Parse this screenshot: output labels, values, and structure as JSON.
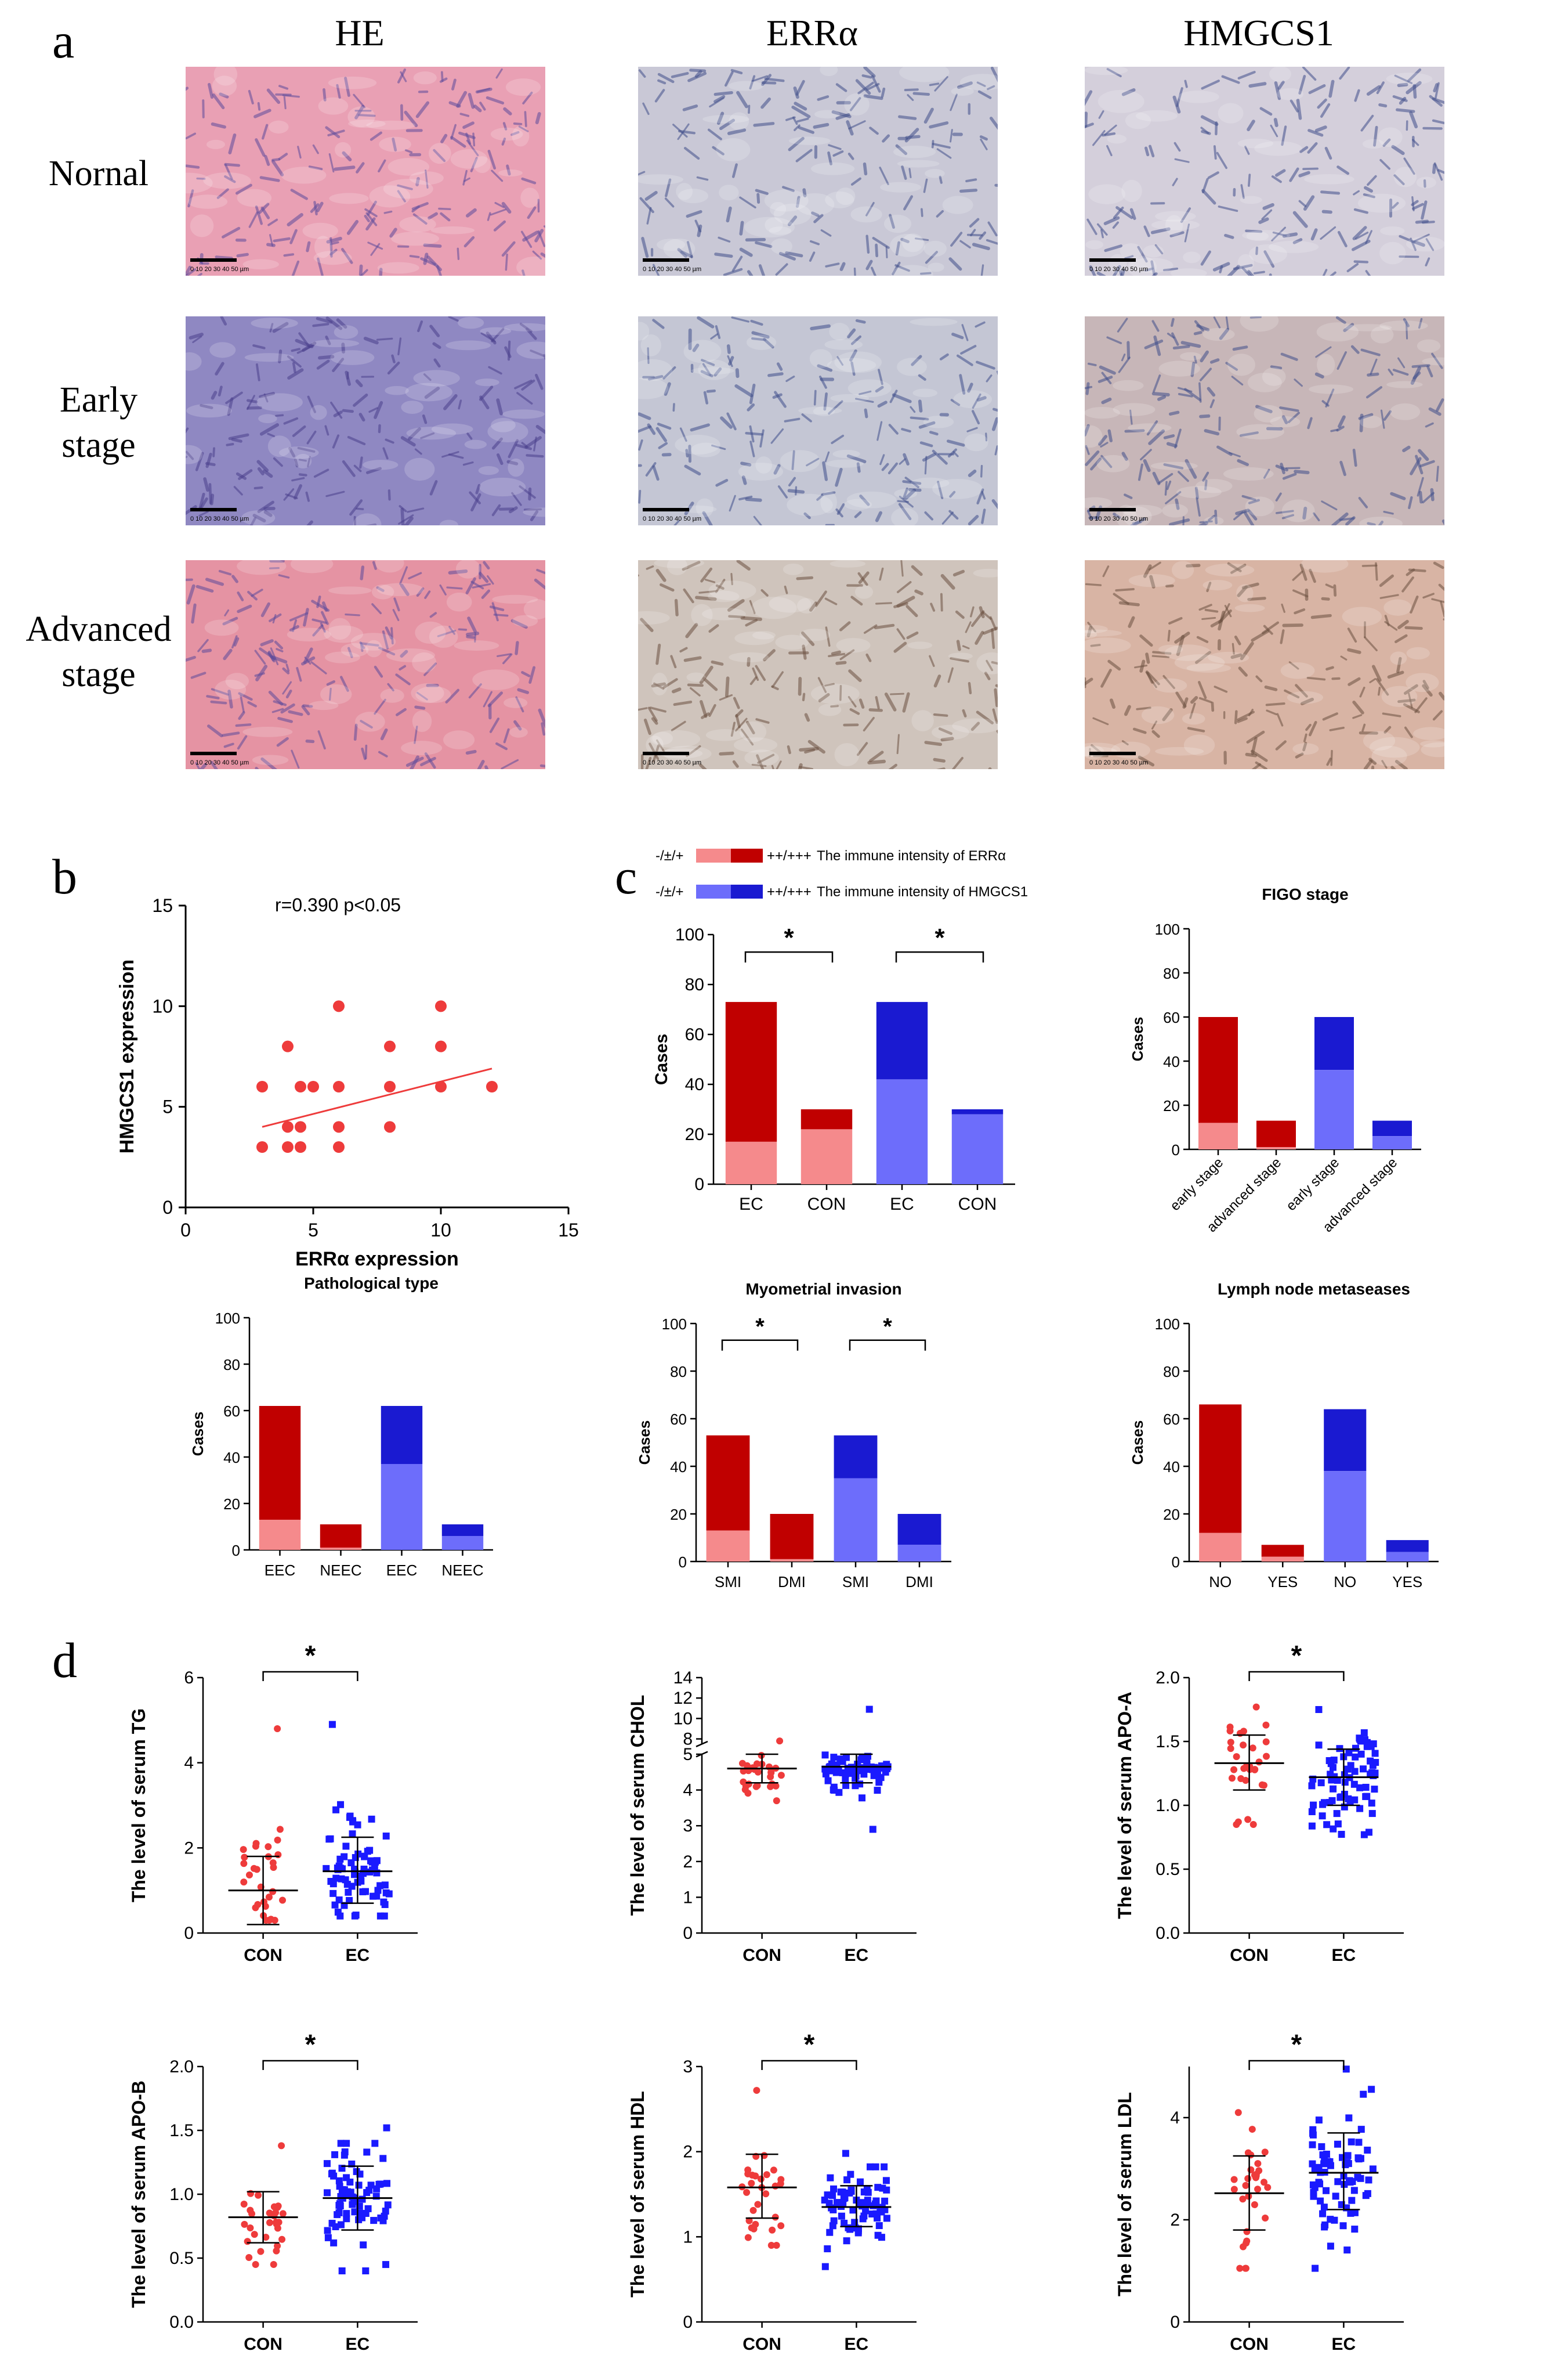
{
  "panel_a": {
    "letter": "a",
    "columns": [
      "HE",
      "ERRα",
      "HMGCS1"
    ],
    "rows": [
      {
        "label_lines": [
          "Nornal"
        ]
      },
      {
        "label_lines": [
          "Early",
          "stage"
        ]
      },
      {
        "label_lines": [
          "Advanced",
          "stage"
        ]
      }
    ],
    "scale_bar_text": "0 10 20 30 40 50 µm",
    "tile_colors": {
      "he_normal": "#e9a0b4",
      "he_early": "#8f88c2",
      "he_adv": "#e593a3",
      "errs_normal": "#c9c8d6",
      "errs_early": "#c4c6d4",
      "errs_adv": "#cfc4bc",
      "hmg_normal": "#d4cfdb",
      "hmg_early": "#c7b6b8",
      "hmg_adv": "#d8b4a4"
    }
  },
  "panel_b": {
    "letter": "b",
    "annotation": "r=0.390    p<0.05",
    "chart_data": {
      "type": "scatter",
      "xlabel": "ERRα expression",
      "ylabel": "HMGCS1 expression",
      "xlim": [
        0,
        15
      ],
      "ylim": [
        0,
        15
      ],
      "xticks": [
        0,
        5,
        10,
        15
      ],
      "yticks": [
        0,
        5,
        10,
        15
      ],
      "points": [
        [
          3,
          3
        ],
        [
          3,
          6
        ],
        [
          4,
          8
        ],
        [
          4,
          4
        ],
        [
          4,
          3
        ],
        [
          4.5,
          6
        ],
        [
          4.5,
          4
        ],
        [
          4.5,
          3
        ],
        [
          5,
          6
        ],
        [
          6,
          10
        ],
        [
          6,
          4
        ],
        [
          6,
          3
        ],
        [
          6,
          6
        ],
        [
          8,
          8
        ],
        [
          8,
          4
        ],
        [
          8,
          6
        ],
        [
          10,
          10
        ],
        [
          10,
          8
        ],
        [
          10,
          6
        ],
        [
          12,
          6
        ]
      ],
      "fit_line": [
        [
          3,
          4.0
        ],
        [
          12,
          6.9
        ]
      ],
      "color": "#ee3b3b"
    }
  },
  "panel_c": {
    "letter": "c",
    "legend": [
      {
        "prefix": "-/±/+",
        "suffix": "++/+++",
        "text": "The immune intensity of ERRα",
        "light": "#f58a8c",
        "dark": "#c00000"
      },
      {
        "prefix": "-/±/+",
        "suffix": "++/+++",
        "text": "The immune intensity of HMGCS1",
        "light": "#6d6dfb",
        "dark": "#1a1ad1"
      }
    ],
    "charts": [
      {
        "title": "",
        "ylabel": "Cases",
        "ylim": [
          0,
          100
        ],
        "yticks": [
          0,
          20,
          40,
          60,
          80,
          100
        ],
        "categories": [
          "EC",
          "CON",
          "EC",
          "CON"
        ],
        "rotate": false,
        "low": [
          17,
          22,
          42,
          28
        ],
        "total": [
          73,
          30,
          73,
          30
        ],
        "colors": [
          "r",
          "r",
          "b",
          "b"
        ],
        "sig": [
          [
            0,
            1,
            "*"
          ],
          [
            2,
            3,
            "*"
          ]
        ]
      },
      {
        "title": "FIGO stage",
        "ylabel": "Cases",
        "ylim": [
          0,
          100
        ],
        "yticks": [
          0,
          20,
          40,
          60,
          80,
          100
        ],
        "categories": [
          "early stage",
          "advanced stage",
          "early stage",
          "advanced stage"
        ],
        "rotate": true,
        "low": [
          12,
          1,
          36,
          6
        ],
        "total": [
          60,
          13,
          60,
          13
        ],
        "colors": [
          "r",
          "r",
          "b",
          "b"
        ],
        "sig": []
      },
      {
        "title": "Pathological type",
        "ylabel": "Cases",
        "ylim": [
          0,
          100
        ],
        "yticks": [
          0,
          20,
          40,
          60,
          80,
          100
        ],
        "categories": [
          "EEC",
          "NEEC",
          "EEC",
          "NEEC"
        ],
        "rotate": false,
        "low": [
          13,
          1,
          37,
          6
        ],
        "total": [
          62,
          11,
          62,
          11
        ],
        "colors": [
          "r",
          "r",
          "b",
          "b"
        ],
        "sig": []
      },
      {
        "title": "Myometrial invasion",
        "ylabel": "Cases",
        "ylim": [
          0,
          100
        ],
        "yticks": [
          0,
          20,
          40,
          60,
          80,
          100
        ],
        "categories": [
          "SMI",
          "DMI",
          "SMI",
          "DMI"
        ],
        "rotate": false,
        "low": [
          13,
          1,
          35,
          7
        ],
        "total": [
          53,
          20,
          53,
          20
        ],
        "colors": [
          "r",
          "r",
          "b",
          "b"
        ],
        "sig": [
          [
            0,
            1,
            "*"
          ],
          [
            2,
            3,
            "*"
          ]
        ]
      },
      {
        "title": "Lymph node metaseases",
        "ylabel": "Cases",
        "ylim": [
          0,
          100
        ],
        "yticks": [
          0,
          20,
          40,
          60,
          80,
          100
        ],
        "categories": [
          "NO",
          "YES",
          "NO",
          "YES"
        ],
        "rotate": false,
        "low": [
          12,
          2,
          38,
          4
        ],
        "total": [
          66,
          7,
          64,
          9
        ],
        "colors": [
          "r",
          "r",
          "b",
          "b"
        ],
        "sig": []
      }
    ]
  },
  "panel_d": {
    "letter": "d",
    "charts": [
      {
        "ylabel": "The level of serum TG",
        "ylim": [
          0,
          6
        ],
        "yticks": [
          0,
          2,
          4,
          6
        ],
        "groups": [
          {
            "name": "CON",
            "mean": 1.0,
            "sd_lo": 0.2,
            "sd_hi": 1.8,
            "min": 0.3,
            "max": 4.8,
            "n": 30
          },
          {
            "name": "EC",
            "mean": 1.45,
            "sd_lo": 0.7,
            "sd_hi": 2.25,
            "min": 0.4,
            "max": 4.9,
            "n": 75
          }
        ],
        "sig": "*",
        "broken": false
      },
      {
        "ylabel": "The level of serum CHOL",
        "ylim": [
          0,
          14
        ],
        "yticks": [
          0,
          1,
          2,
          3,
          4,
          5,
          8,
          10,
          12,
          14
        ],
        "groups": [
          {
            "name": "CON",
            "mean": 4.6,
            "sd_lo": 4.2,
            "sd_hi": 5.0,
            "min": 3.7,
            "max": 7.8,
            "n": 30
          },
          {
            "name": "EC",
            "mean": 4.65,
            "sd_lo": 4.2,
            "sd_hi": 5.0,
            "min": 2.9,
            "max": 10.9,
            "n": 75
          }
        ],
        "sig": "",
        "broken": true
      },
      {
        "ylabel": "The level of serum APO-A",
        "ylim": [
          0,
          2.0
        ],
        "yticks": [
          0.0,
          0.5,
          1.0,
          1.5,
          2.0
        ],
        "groups": [
          {
            "name": "CON",
            "mean": 1.33,
            "sd_lo": 1.12,
            "sd_hi": 1.55,
            "min": 0.85,
            "max": 1.77,
            "n": 30
          },
          {
            "name": "EC",
            "mean": 1.22,
            "sd_lo": 1.0,
            "sd_hi": 1.44,
            "min": 0.77,
            "max": 1.75,
            "n": 75
          }
        ],
        "sig": "*",
        "broken": false
      },
      {
        "ylabel": "The level of serum APO-B",
        "ylim": [
          0,
          2.0
        ],
        "yticks": [
          0.0,
          0.5,
          1.0,
          1.5,
          2.0
        ],
        "groups": [
          {
            "name": "CON",
            "mean": 0.82,
            "sd_lo": 0.62,
            "sd_hi": 1.02,
            "min": 0.45,
            "max": 1.38,
            "n": 30
          },
          {
            "name": "EC",
            "mean": 0.97,
            "sd_lo": 0.72,
            "sd_hi": 1.22,
            "min": 0.4,
            "max": 1.52,
            "n": 75
          }
        ],
        "sig": "*",
        "broken": false
      },
      {
        "ylabel": "The level of serum HDL",
        "ylim": [
          0,
          3
        ],
        "yticks": [
          0,
          1,
          2,
          3
        ],
        "groups": [
          {
            "name": "CON",
            "mean": 1.58,
            "sd_lo": 1.22,
            "sd_hi": 1.97,
            "min": 0.9,
            "max": 2.72,
            "n": 30
          },
          {
            "name": "EC",
            "mean": 1.35,
            "sd_lo": 1.12,
            "sd_hi": 1.6,
            "min": 0.65,
            "max": 1.98,
            "n": 75
          }
        ],
        "sig": "*",
        "broken": false
      },
      {
        "ylabel": "The level of serum LDL",
        "ylim": [
          0,
          5
        ],
        "yticks": [
          0,
          2,
          4
        ],
        "groups": [
          {
            "name": "CON",
            "mean": 2.52,
            "sd_lo": 1.8,
            "sd_hi": 3.25,
            "min": 1.05,
            "max": 4.1,
            "n": 30
          },
          {
            "name": "EC",
            "mean": 2.92,
            "sd_lo": 2.2,
            "sd_hi": 3.7,
            "min": 1.05,
            "max": 4.95,
            "n": 75
          }
        ],
        "sig": "*",
        "broken": false
      }
    ],
    "red": "#ee3b3b",
    "blue": "#1a1aff"
  }
}
